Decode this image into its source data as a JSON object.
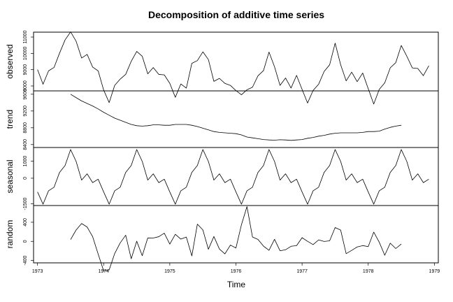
{
  "chart_data": {
    "type": "line",
    "title": "Decomposition of additive time series",
    "xlabel": "Time",
    "xlim": [
      1972.94,
      1979.06
    ],
    "x_ticks": [
      1973,
      1974,
      1975,
      1976,
      1977,
      1978,
      1979
    ],
    "x_tick_labels": [
      "1973",
      "1974",
      "1975",
      "1976",
      "1977",
      "1978",
      "1979"
    ],
    "time_start": 1973.0,
    "frequency": 12,
    "panels": [
      {
        "name": "observed",
        "ylabel": "observed",
        "ylim": [
          7700,
          11300
        ],
        "y_ticks": [
          8000,
          9000,
          10000,
          11000
        ],
        "y_tick_labels": [
          "8000",
          "9000",
          "10000",
          "11000"
        ],
        "values": [
          9007,
          8106,
          8928,
          9137,
          10017,
          10826,
          11317,
          10744,
          9713,
          9938,
          9161,
          8927,
          7750,
          6981,
          8038,
          8422,
          8714,
          9512,
          10120,
          9823,
          8743,
          9129,
          8710,
          8680,
          8162,
          7306,
          8124,
          7870,
          9387,
          9556,
          10093,
          9620,
          8285,
          8466,
          8160,
          8034,
          7717,
          7461,
          7767,
          7925,
          8623,
          8945,
          10078,
          9179,
          8037,
          8488,
          7874,
          8647,
          7792,
          6957,
          7726,
          8106,
          8890,
          9299,
          10625,
          9302,
          8314,
          8850,
          8265,
          8796,
          7836,
          6892,
          7791,
          8192,
          9115,
          9434,
          10484,
          9827,
          9110,
          9070,
          8633,
          9240
        ]
      },
      {
        "name": "trend",
        "ylabel": "trend",
        "ylim": [
          8330,
          9680
        ],
        "y_ticks": [
          8400,
          8800,
          9200,
          9600
        ],
        "y_tick_labels": [
          "8400",
          "8800",
          "9200",
          "9600"
        ],
        "values": [
          null,
          null,
          null,
          null,
          null,
          null,
          9600,
          9520,
          9440,
          9380,
          9320,
          9250,
          9170,
          9100,
          9030,
          8980,
          8930,
          8880,
          8850,
          8840,
          8850,
          8870,
          8870,
          8860,
          8860,
          8880,
          8880,
          8880,
          8860,
          8830,
          8790,
          8750,
          8710,
          8690,
          8680,
          8670,
          8660,
          8630,
          8580,
          8560,
          8540,
          8520,
          8510,
          8505,
          8515,
          8510,
          8500,
          8510,
          8520,
          8550,
          8570,
          8600,
          8620,
          8650,
          8670,
          8680,
          8680,
          8680,
          8680,
          8690,
          8710,
          8710,
          8720,
          8770,
          8810,
          8840,
          8860,
          null,
          null,
          null,
          null,
          null
        ]
      },
      {
        "name": "seasonal",
        "ylabel": "seasonal",
        "ylim": [
          -1600,
          1800
        ],
        "y_ticks": [
          -1500,
          0,
          1000
        ],
        "y_tick_labels": [
          "-1500",
          "0",
          "1000"
        ],
        "values": [
          -804,
          -1522,
          -737,
          -526,
          343,
          746,
          1680,
          986,
          -109,
          258,
          -258,
          -57,
          -804,
          -1522,
          -737,
          -526,
          343,
          746,
          1680,
          986,
          -109,
          258,
          -258,
          -57,
          -804,
          -1522,
          -737,
          -526,
          343,
          746,
          1680,
          986,
          -109,
          258,
          -258,
          -57,
          -804,
          -1522,
          -737,
          -526,
          343,
          746,
          1680,
          986,
          -109,
          258,
          -258,
          -57,
          -804,
          -1522,
          -737,
          -526,
          343,
          746,
          1680,
          986,
          -109,
          258,
          -258,
          -57,
          -804,
          -1522,
          -737,
          -526,
          343,
          746,
          1680,
          986,
          -109,
          258,
          -258,
          -57
        ]
      },
      {
        "name": "random",
        "ylabel": "random",
        "ylim": [
          -450,
          750
        ],
        "y_ticks": [
          -400,
          0,
          400
        ],
        "y_tick_labels": [
          "-400",
          "0",
          "400"
        ],
        "values": [
          null,
          null,
          null,
          null,
          null,
          null,
          37,
          238,
          373,
          300,
          99,
          -266,
          -616,
          -597,
          -255,
          -32,
          129,
          -364,
          3,
          -300,
          71,
          70,
          98,
          171,
          -58,
          148,
          47,
          90,
          -304,
          360,
          240,
          -166,
          102,
          -160,
          -262,
          -78,
          -139,
          348,
          728,
          92,
          40,
          -99,
          -188,
          43,
          -197,
          -176,
          -103,
          -90,
          77,
          1,
          -69,
          31,
          -2,
          11,
          289,
          236,
          -257,
          -189,
          -117,
          -89,
          -110,
          194,
          -17,
          -291,
          -38,
          -150,
          -56,
          null,
          null,
          null,
          null,
          null
        ]
      }
    ]
  }
}
